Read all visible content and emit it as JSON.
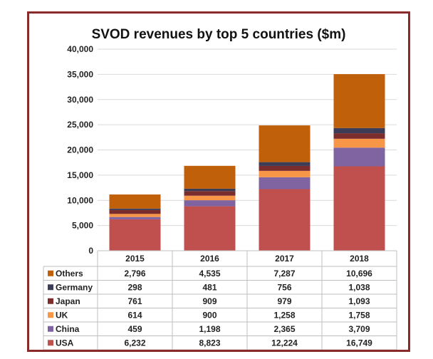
{
  "chart_data": {
    "type": "bar",
    "stacked": true,
    "title": "SVOD revenues by top 5 countries ($m)",
    "categories": [
      "2015",
      "2016",
      "2017",
      "2018"
    ],
    "ylim": [
      0,
      40000
    ],
    "yticks": [
      "0",
      "5,000",
      "10,000",
      "15,000",
      "20,000",
      "25,000",
      "30,000",
      "35,000",
      "40,000"
    ],
    "ytick_values": [
      0,
      5000,
      10000,
      15000,
      20000,
      25000,
      30000,
      35000,
      40000
    ],
    "grid": true,
    "legend": "data-table",
    "series": [
      {
        "name": "USA",
        "color": "#c0504d",
        "values": [
          6232,
          8823,
          12224,
          16749
        ],
        "labels": [
          "6,232",
          "8,823",
          "12,224",
          "16,749"
        ]
      },
      {
        "name": "China",
        "color": "#8064a2",
        "values": [
          459,
          1198,
          2365,
          3709
        ],
        "labels": [
          "459",
          "1,198",
          "2,365",
          "3,709"
        ]
      },
      {
        "name": "UK",
        "color": "#f79646",
        "values": [
          614,
          900,
          1258,
          1758
        ],
        "labels": [
          "614",
          "900",
          "1,258",
          "1,758"
        ]
      },
      {
        "name": "Japan",
        "color": "#7b2c2c",
        "values": [
          761,
          909,
          979,
          1093
        ],
        "labels": [
          "761",
          "909",
          "979",
          "1,093"
        ]
      },
      {
        "name": "Germany",
        "color": "#3c3c56",
        "values": [
          298,
          481,
          756,
          1038
        ],
        "labels": [
          "298",
          "481",
          "756",
          "1,038"
        ]
      },
      {
        "name": "Others",
        "color": "#c0600a",
        "values": [
          2796,
          4535,
          7287,
          10696
        ],
        "labels": [
          "2,796",
          "4,535",
          "7,287",
          "10,696"
        ]
      }
    ]
  }
}
